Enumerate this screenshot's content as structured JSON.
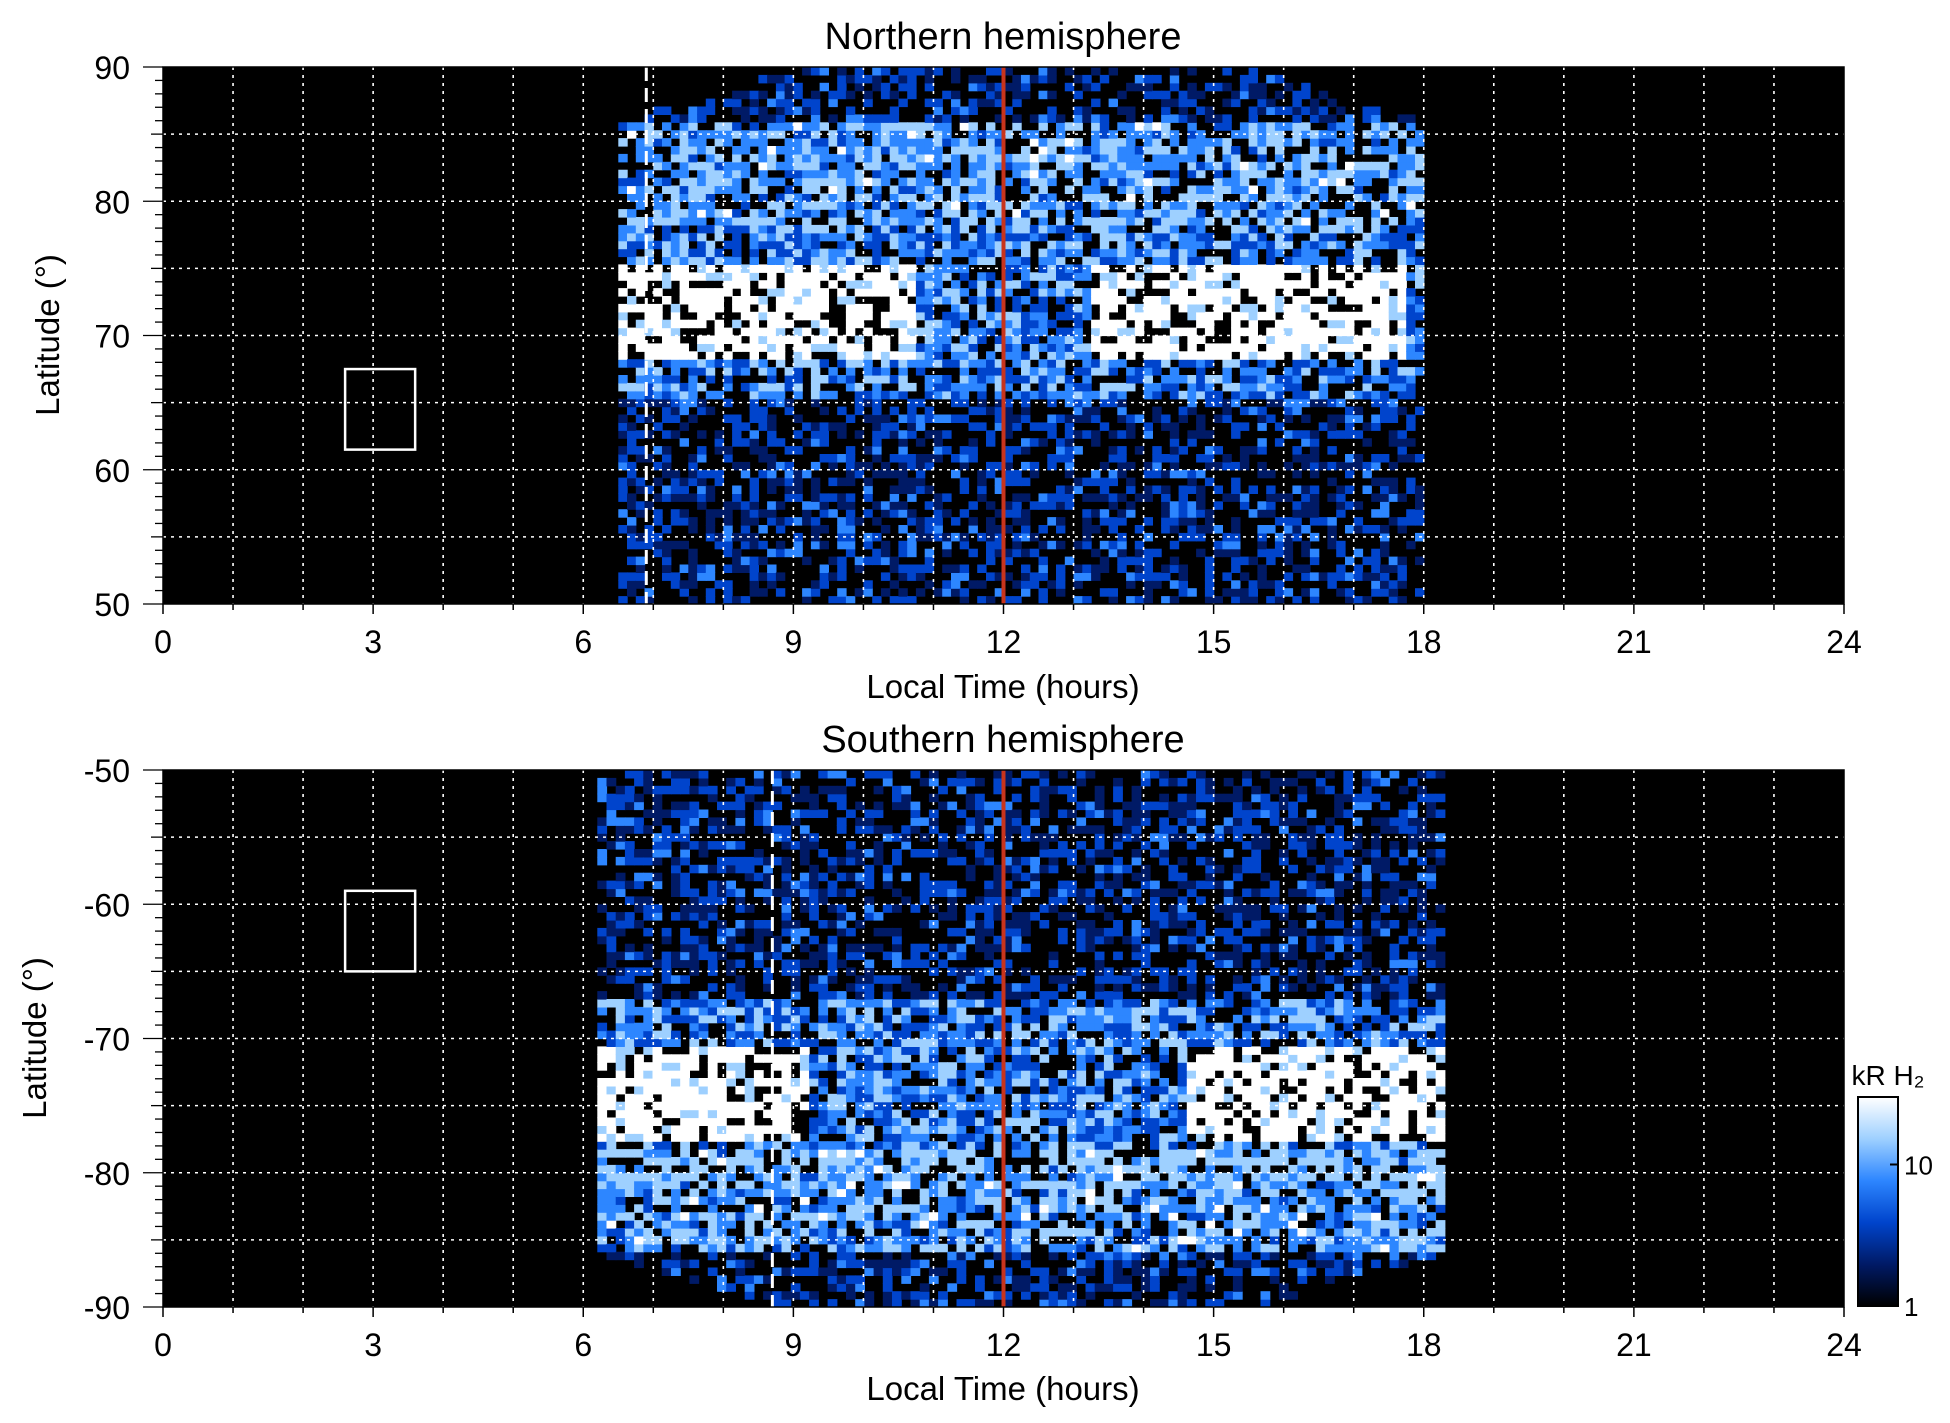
{
  "colorbar": {
    "label": "kR H₂",
    "scale": "log",
    "range": [
      1,
      30
    ],
    "tick_labels": [
      "1",
      "10"
    ],
    "colors": [
      "#000000",
      "#001a66",
      "#0044cc",
      "#2d86ff",
      "#9ed0ff",
      "#ffffff"
    ]
  },
  "meridian_color": "#c8341c",
  "chart_data": [
    {
      "type": "heatmap",
      "title": "Northern hemisphere",
      "xlabel": "Local Time (hours)",
      "ylabel": "Latitude (°)",
      "xlim": [
        0,
        24
      ],
      "ylim": [
        50,
        90
      ],
      "x_ticks": [
        0,
        3,
        6,
        9,
        12,
        15,
        18,
        21,
        24
      ],
      "x_tick_labels": [
        "0",
        "3",
        "6",
        "9",
        "12",
        "15",
        "18",
        "21",
        "24"
      ],
      "y_ticks": [
        50,
        60,
        70,
        80,
        90
      ],
      "y_tick_labels": [
        "50",
        "60",
        "70",
        "80",
        "90"
      ],
      "grid": true,
      "dashed_marker_lt": 6.9,
      "noon_line_lt": 12,
      "box": {
        "lt": [
          2.6,
          3.6
        ],
        "lat": [
          61.5,
          67.5
        ]
      },
      "coverage_lt": [
        6.5,
        18
      ],
      "oval": {
        "dawn_lt": 8.5,
        "dusk_lt": 15.5,
        "lat": 72
      }
    },
    {
      "type": "heatmap",
      "title": "Southern hemisphere",
      "xlabel": "Local Time (hours)",
      "ylabel": "Latitude (°)",
      "xlim": [
        0,
        24
      ],
      "ylim": [
        -90,
        -50
      ],
      "x_ticks": [
        0,
        3,
        6,
        9,
        12,
        15,
        18,
        21,
        24
      ],
      "x_tick_labels": [
        "0",
        "3",
        "6",
        "9",
        "12",
        "15",
        "18",
        "21",
        "24"
      ],
      "y_ticks": [
        -90,
        -80,
        -70,
        -60,
        -50
      ],
      "y_tick_labels": [
        "-90",
        "-80",
        "-70",
        "-60",
        "-50"
      ],
      "grid": true,
      "dashed_marker_lt": 8.7,
      "noon_line_lt": 12,
      "box": {
        "lt": [
          2.6,
          3.6
        ],
        "lat": [
          -65,
          -59
        ]
      },
      "coverage_lt": [
        6.2,
        18.3
      ],
      "oval": {
        "dawn_lt": 7.0,
        "dusk_lt": 16.8,
        "lat": -74
      }
    }
  ]
}
